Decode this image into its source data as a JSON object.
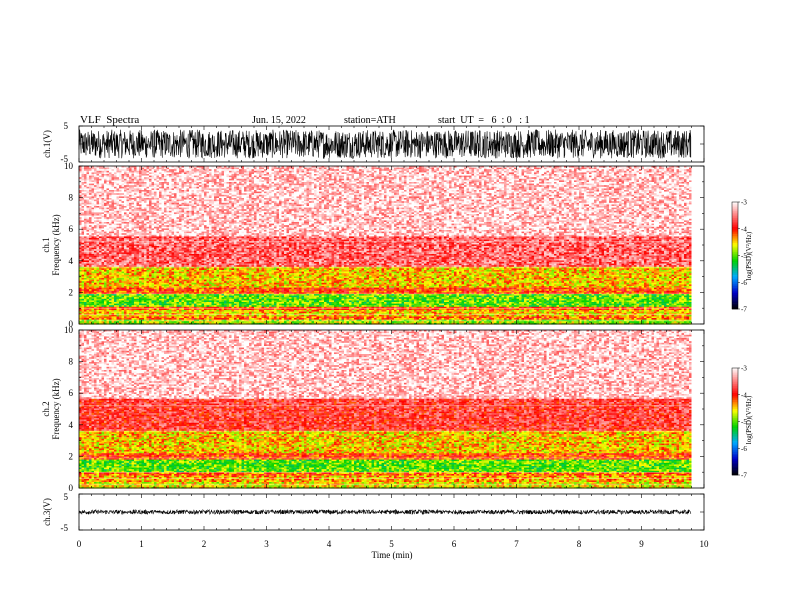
{
  "header": {
    "title": "VLF  Spectra",
    "date": "Jun. 15, 2022",
    "station": "station=ATH",
    "start_ut": "start  UT  =   6  : 0   : 1"
  },
  "chart_data": [
    {
      "type": "line",
      "panel": "ch1-waveform",
      "ylabel": "ch.1(V)",
      "ylim": [
        -5,
        5
      ],
      "yticks": [
        "5",
        "-5"
      ],
      "xlim": [
        0,
        10
      ],
      "x_range_data": [
        0,
        9.8
      ],
      "amplitude_envelope": [
        -4,
        4
      ],
      "trace_color": "#000000"
    },
    {
      "type": "heatmap",
      "panel": "ch1-spectrogram",
      "ylabel_channel": "ch.1",
      "ylabel": "Frequency  (kHz)",
      "ylim": [
        0,
        10
      ],
      "yticks": [
        "0",
        "2",
        "4",
        "6",
        "8",
        "10"
      ],
      "xlim": [
        0,
        9.8
      ],
      "bands": [
        {
          "from": 0.0,
          "to": 0.3,
          "level": -4.8
        },
        {
          "from": 0.3,
          "to": 0.5,
          "level": -4.2
        },
        {
          "from": 0.5,
          "to": 0.9,
          "level": -4.5
        },
        {
          "from": 0.9,
          "to": 1.1,
          "level": -4.1
        },
        {
          "from": 1.1,
          "to": 1.9,
          "level": -5.0
        },
        {
          "from": 1.9,
          "to": 2.3,
          "level": -4.1
        },
        {
          "from": 2.3,
          "to": 3.6,
          "level": -4.5
        },
        {
          "from": 3.6,
          "to": 5.5,
          "level": -3.6
        },
        {
          "from": 5.5,
          "to": 10.0,
          "level": -3.2
        }
      ],
      "colorbar": {
        "label": "log(PSD)(V²/Hz)",
        "ticks": [
          "-3",
          "-4",
          "-5",
          "-6",
          "-7"
        ],
        "range": [
          -7,
          -3
        ]
      }
    },
    {
      "type": "heatmap",
      "panel": "ch2-spectrogram",
      "ylabel_channel": "ch.2",
      "ylabel": "Frequency  (kHz)",
      "ylim": [
        0,
        10
      ],
      "yticks": [
        "0",
        "2",
        "4",
        "6",
        "8",
        "10"
      ],
      "xlim": [
        0,
        9.8
      ],
      "bands": [
        {
          "from": 0.0,
          "to": 0.4,
          "level": -4.6
        },
        {
          "from": 0.4,
          "to": 0.8,
          "level": -4.4
        },
        {
          "from": 0.8,
          "to": 1.0,
          "level": -4.2
        },
        {
          "from": 1.0,
          "to": 1.8,
          "level": -5.0
        },
        {
          "from": 1.8,
          "to": 2.2,
          "level": -4.1
        },
        {
          "from": 2.2,
          "to": 3.6,
          "level": -4.5
        },
        {
          "from": 3.6,
          "to": 5.6,
          "level": -3.8
        },
        {
          "from": 5.6,
          "to": 10.0,
          "level": -3.2
        }
      ],
      "colorbar": {
        "label": "log(PSD)(V²/Hz)",
        "ticks": [
          "-3",
          "-4",
          "-5",
          "-6",
          "-7"
        ],
        "range": [
          -7,
          -3
        ]
      }
    },
    {
      "type": "line",
      "panel": "ch3-waveform",
      "ylabel": "ch.3(V)",
      "ylim": [
        -5,
        5
      ],
      "yticks": [
        "5",
        "-5"
      ],
      "xlim": [
        0,
        10
      ],
      "x_range_data": [
        0,
        9.8
      ],
      "amplitude_envelope": [
        -0.6,
        0.6
      ],
      "baseline": 0,
      "xlabel": "Time  (min)",
      "xticks": [
        "0",
        "1",
        "2",
        "3",
        "4",
        "5",
        "6",
        "7",
        "8",
        "9",
        "10"
      ],
      "trace_color": "#000000"
    }
  ]
}
